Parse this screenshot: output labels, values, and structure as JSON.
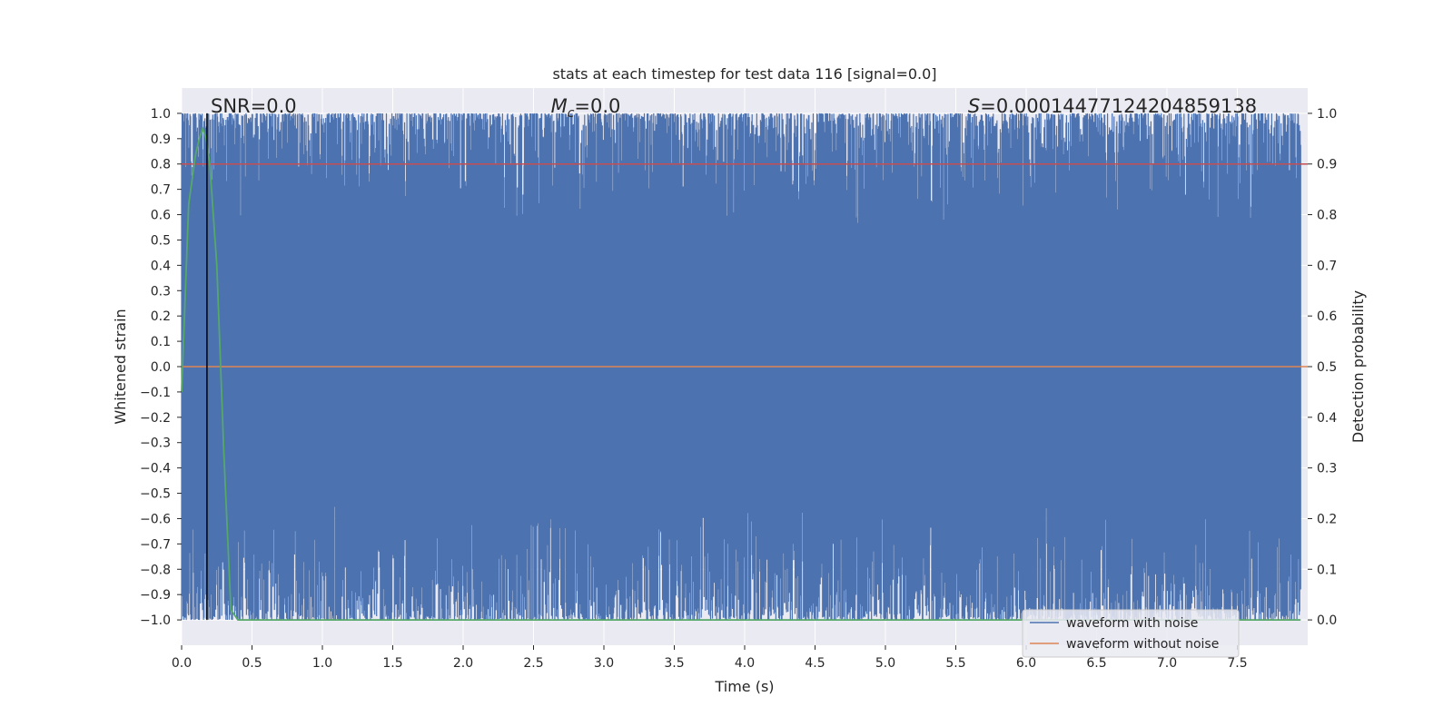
{
  "chart_data": {
    "type": "line",
    "title": "stats at each timestep for test data 116 [signal=0.0]",
    "xlabel": "Time (s)",
    "ylabel_left": "Whitened strain",
    "ylabel_right": "Detection probability",
    "xlim": [
      0.0,
      8.0
    ],
    "ylim_left": [
      -1.1,
      1.1
    ],
    "ylim_right": [
      -0.05,
      1.05
    ],
    "x_ticks": [
      0.0,
      0.5,
      1.0,
      1.5,
      2.0,
      2.5,
      3.0,
      3.5,
      4.0,
      4.5,
      5.0,
      5.5,
      6.0,
      6.5,
      7.0,
      7.5
    ],
    "x_tick_labels": [
      "0.0",
      "0.5",
      "1.0",
      "1.5",
      "2.0",
      "2.5",
      "3.0",
      "3.5",
      "4.0",
      "4.5",
      "5.0",
      "5.5",
      "6.0",
      "6.5",
      "7.0",
      "7.5"
    ],
    "y_left_ticks": [
      1.0,
      0.9,
      0.8,
      0.7,
      0.6,
      0.5,
      0.4,
      0.3,
      0.2,
      0.1,
      0.0,
      -0.1,
      -0.2,
      -0.3,
      -0.4,
      -0.5,
      -0.6,
      -0.7,
      -0.8,
      -0.9,
      -1.0
    ],
    "y_left_tick_labels": [
      "1.0",
      "0.9",
      "0.8",
      "0.7",
      "0.6",
      "0.5",
      "0.4",
      "0.3",
      "0.2",
      "0.1",
      "0.0",
      "−0.1",
      "−0.2",
      "−0.3",
      "−0.4",
      "−0.5",
      "−0.6",
      "−0.7",
      "−0.8",
      "−0.9",
      "−1.0"
    ],
    "y_right_ticks": [
      1.0,
      0.9,
      0.8,
      0.7,
      0.6,
      0.5,
      0.4,
      0.3,
      0.2,
      0.1,
      0.0
    ],
    "y_right_tick_labels": [
      "1.0",
      "0.9",
      "0.8",
      "0.7",
      "0.6",
      "0.5",
      "0.4",
      "0.3",
      "0.2",
      "0.1",
      "0.0"
    ],
    "grid": true,
    "legend_position": "bottom-right",
    "annotations": {
      "snr": "SNR=0.0",
      "mc_symbol": "M",
      "mc_subscript": "c",
      "mc_value": "=0.0",
      "s_symbol": "S",
      "s_value": "=0.00014477124204859138"
    },
    "series": [
      {
        "name": "waveform with noise",
        "axis": "left",
        "color": "#4c72b0",
        "style": "dense noise spanning approximately -1.0 to 1.0 over the full time range",
        "y_range": [
          -1.0,
          1.0
        ]
      },
      {
        "name": "waveform without noise",
        "axis": "left",
        "color": "#dd8452",
        "x": [
          0.0,
          8.0
        ],
        "y": [
          0.0,
          0.0
        ]
      },
      {
        "axis": "right",
        "color": "#55a868",
        "x": [
          0.0,
          0.05,
          0.1,
          0.125,
          0.15,
          0.175,
          0.2,
          0.25,
          0.3,
          0.35,
          0.4,
          0.5,
          1.0,
          2.0,
          4.0,
          6.0,
          7.95
        ],
        "y": [
          0.45,
          0.82,
          0.92,
          0.95,
          0.97,
          0.95,
          0.9,
          0.7,
          0.33,
          0.02,
          0.0,
          0.0,
          0.0,
          0.0,
          0.0,
          0.0,
          0.0
        ]
      }
    ],
    "threshold_line": {
      "axis": "right",
      "color": "#c44e52",
      "value": 0.9
    },
    "marker_line": {
      "color": "#000000",
      "x": 0.18
    }
  }
}
